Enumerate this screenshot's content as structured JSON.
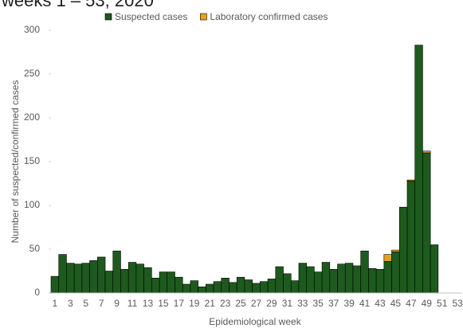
{
  "chart_data": {
    "type": "stacked-bar",
    "title": "weeks 1 – 53, 2020",
    "x_label": "Epidemiological week",
    "y_label": "Number of suspected/confirmed cases",
    "categories": [
      1,
      null,
      3,
      null,
      5,
      null,
      7,
      null,
      9,
      null,
      11,
      null,
      13,
      null,
      15,
      null,
      17,
      null,
      19,
      null,
      21,
      null,
      23,
      null,
      25,
      null,
      27,
      null,
      29,
      null,
      31,
      null,
      33,
      null,
      35,
      null,
      37,
      null,
      39,
      null,
      41,
      null,
      43,
      null,
      45,
      null,
      47,
      null,
      49,
      null,
      51,
      null,
      53
    ],
    "series": [
      {
        "name": "Suspected cases",
        "color": "#1e5a1e",
        "values": [
          19,
          44,
          34,
          33,
          34,
          37,
          41,
          25,
          48,
          27,
          35,
          33,
          29,
          17,
          24,
          24,
          18,
          10,
          14,
          7,
          10,
          13,
          17,
          12,
          18,
          15,
          11,
          13,
          16,
          30,
          22,
          14,
          34,
          30,
          24,
          35,
          27,
          33,
          34,
          31,
          48,
          28,
          27,
          36,
          47,
          98,
          128,
          283,
          160,
          55,
          0,
          0,
          0
        ]
      },
      {
        "name": "Laboratory confirmed cases",
        "color": "#e8a020",
        "values": [
          0,
          0,
          0,
          0,
          0,
          0,
          0,
          0,
          0,
          0,
          0,
          0,
          0,
          0,
          0,
          0,
          0,
          0,
          0,
          0,
          0,
          0,
          0,
          0,
          0,
          0,
          0,
          0,
          0,
          0,
          0,
          0,
          0,
          0,
          0,
          0,
          0,
          0,
          0,
          0,
          0,
          0,
          0,
          8,
          2,
          0,
          1,
          0,
          2,
          0,
          0,
          0,
          0
        ]
      }
    ],
    "ylim": [
      0,
      300
    ],
    "yticks": [
      0,
      50,
      100,
      150,
      200,
      250,
      300
    ],
    "legend": "top"
  }
}
